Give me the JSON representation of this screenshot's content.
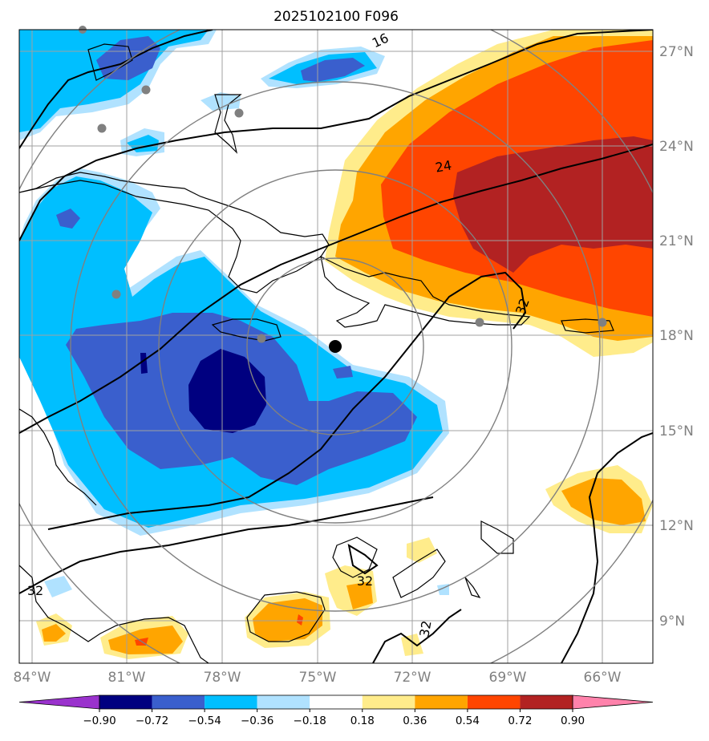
{
  "title": "2025102100 F096",
  "lon_labels": [
    "84°W",
    "81°W",
    "78°W",
    "75°W",
    "72°W",
    "69°W",
    "66°W"
  ],
  "lat_labels": [
    "27°N",
    "24°N",
    "21°N",
    "18°N",
    "15°N",
    "12°N",
    "9°N"
  ],
  "contour_labels": [
    "16",
    "24",
    "32",
    "32",
    "32",
    "32"
  ],
  "colorbar": {
    "ticks": [
      "−0.90",
      "−0.72",
      "−0.54",
      "−0.36",
      "−0.18",
      "0.18",
      "0.36",
      "0.54",
      "0.72",
      "0.90"
    ],
    "colors": [
      "#9a32cd",
      "#000080",
      "#3a5fcd",
      "#00bfff",
      "#b0e2ff",
      "#ffffff",
      "#ffec8b",
      "#ffa500",
      "#ff4500",
      "#b22222",
      "#ff82ab"
    ]
  },
  "colors": {
    "dark_navy": "#000080",
    "royal_blue": "#3a5fcd",
    "deep_sky": "#00bfff",
    "light_blue": "#b0e2ff",
    "light_yellow": "#ffec8b",
    "orange": "#ffa500",
    "orange_red": "#ff4500",
    "firebrick": "#b22222",
    "grid": "#a0a0a0",
    "range_rings": "#808080"
  },
  "icons": [
    "storm-center-marker",
    "station-marker"
  ]
}
